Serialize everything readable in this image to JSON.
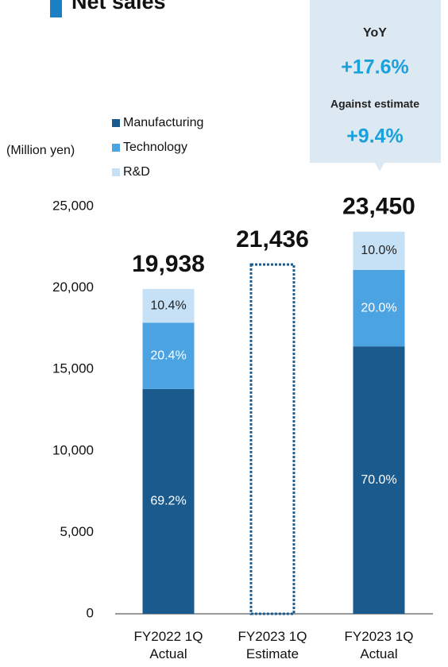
{
  "chart_data": {
    "type": "stacked-bar",
    "title": "Net sales",
    "y_label": "(Million yen)",
    "categories": [
      "FY2022 1Q Actual",
      "FY2023 1Q Estimate",
      "FY2023 1Q Actual"
    ],
    "series": [
      {
        "name": "Manufacturing",
        "color": "#1b5a8c",
        "values": [
          13797,
          null,
          16415
        ],
        "value_labels": [
          "69.2%",
          null,
          "70.0%"
        ],
        "label_color": "#ffffff"
      },
      {
        "name": "Technology",
        "color": "#4ca3e2",
        "values": [
          4067,
          null,
          4690
        ],
        "value_labels": [
          "20.4%",
          null,
          "20.0%"
        ],
        "label_color": "#ffffff"
      },
      {
        "name": "R&D",
        "color": "#c6e0f5",
        "values": [
          2074,
          null,
          2345
        ],
        "value_labels": [
          "10.4%",
          null,
          "10.0%"
        ],
        "label_color": "#222222"
      }
    ],
    "totals": {
      "values": [
        19938,
        21436,
        23450
      ],
      "value_labels": [
        "19,938",
        "21,436",
        "23,450"
      ]
    },
    "estimate_color": "#1b5a8c",
    "ylim": [
      0,
      25000
    ],
    "yticks": [
      0,
      {
        "value": 5000,
        "label": "5,000"
      },
      {
        "value": 10000,
        "label": "10,000"
      },
      {
        "value": 15000,
        "label": "15,000"
      },
      {
        "value": 20000,
        "label": "20,000"
      },
      {
        "value": 25000,
        "label": "25,000"
      }
    ],
    "grid": false,
    "callout": {
      "yoy_label": "YoY",
      "yoy_value": "+17.6%",
      "estimate_label": "Against estimate",
      "estimate_value": "+9.4%"
    }
  }
}
